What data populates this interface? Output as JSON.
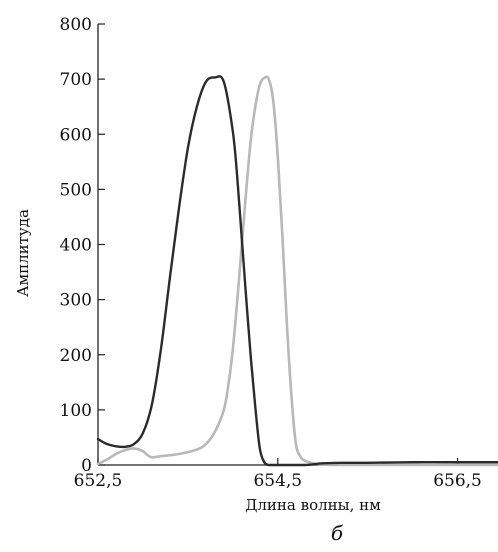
{
  "chart_data": {
    "type": "line",
    "title": "",
    "xlabel": "Длина волны, нм",
    "ylabel": "Амплитуда",
    "panel_label": "б",
    "xlim": [
      652.5,
      656.95
    ],
    "ylim": [
      0,
      800
    ],
    "x_ticks": [
      652.5,
      654.5,
      656.5
    ],
    "x_tick_labels": [
      "652,5",
      "654,5",
      "656,5"
    ],
    "y_ticks": [
      0,
      100,
      200,
      300,
      400,
      500,
      600,
      700,
      800
    ],
    "y_tick_labels": [
      "0",
      "100",
      "200",
      "300",
      "400",
      "500",
      "600",
      "700",
      "800"
    ],
    "grid": false,
    "legend": "none",
    "series": [
      {
        "color": "#2b2b2b",
        "x": [
          652.5,
          652.6,
          652.7,
          652.8,
          652.9,
          653.0,
          653.1,
          653.2,
          653.3,
          653.4,
          653.5,
          653.6,
          653.7,
          653.8,
          653.9,
          654.0,
          654.05,
          654.1,
          654.15,
          654.2,
          654.25,
          654.3,
          654.35,
          654.4,
          654.45,
          654.5,
          654.6,
          654.8,
          655.0,
          655.2,
          655.5,
          656.0,
          656.5,
          656.95
        ],
        "y": [
          47,
          38,
          34,
          33,
          38,
          58,
          110,
          210,
          340,
          465,
          575,
          650,
          695,
          703,
          695,
          605,
          520,
          410,
          300,
          195,
          105,
          30,
          5,
          0,
          0,
          0,
          0,
          0,
          3,
          4,
          4,
          5,
          5,
          5
        ]
      },
      {
        "color": "#b8b8b8",
        "x": [
          652.5,
          652.6,
          652.7,
          652.8,
          652.9,
          653.0,
          653.05,
          653.1,
          653.2,
          653.4,
          653.6,
          653.7,
          653.8,
          653.9,
          653.95,
          654.0,
          654.05,
          654.1,
          654.15,
          654.2,
          654.25,
          654.3,
          654.35,
          654.4,
          654.45,
          654.5,
          654.55,
          654.6,
          654.65,
          654.7,
          654.75,
          654.8,
          654.9,
          655.0,
          655.1,
          655.3,
          655.6,
          656.0,
          656.5,
          656.95
        ],
        "y": [
          2,
          10,
          20,
          27,
          30,
          25,
          18,
          14,
          16,
          20,
          28,
          38,
          60,
          100,
          145,
          210,
          300,
          400,
          500,
          590,
          650,
          690,
          702,
          700,
          660,
          560,
          420,
          260,
          130,
          40,
          16,
          8,
          3,
          1,
          0,
          0,
          0,
          0,
          0,
          0
        ]
      }
    ]
  }
}
